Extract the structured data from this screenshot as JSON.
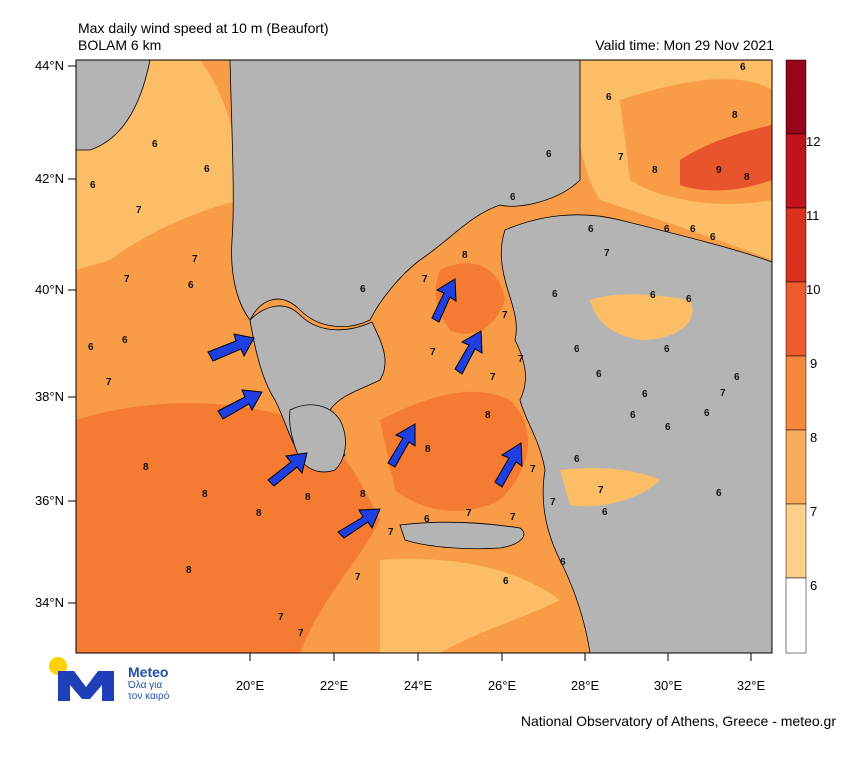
{
  "header": {
    "title": "Max daily wind speed at 10 m (Beaufort)",
    "model": "BOLAM 6 km",
    "valid_time": "Valid time: Mon 29 Nov 2021"
  },
  "map": {
    "lat_labels": [
      "44°N",
      "42°N",
      "40°N",
      "38°N",
      "36°N",
      "34°N"
    ],
    "lon_labels": [
      "20°E",
      "22°E",
      "24°E",
      "26°E",
      "28°E",
      "30°E",
      "32°E"
    ],
    "colors": {
      "land": "#b4b4b4",
      "bf6": "#fbbd66",
      "bf7": "#f99c48",
      "bf8": "#f57a32",
      "bf9": "#e8542b",
      "arrow": "#1f3fe0"
    },
    "contour_labels": {
      "n6": "6",
      "n7": "7",
      "n8": "8",
      "n9": "9"
    },
    "arrows_count": 8
  },
  "colorbar": {
    "labels": [
      "6",
      "7",
      "8",
      "9",
      "10",
      "11",
      "12"
    ],
    "colors": [
      "#ffffff",
      "#fdcf8a",
      "#fbab5c",
      "#f5863c",
      "#ec5c2c",
      "#d9301f",
      "#c1131c",
      "#95061b"
    ]
  },
  "logo": {
    "name": "Meteo",
    "tagline1": "Όλα για",
    "tagline2": "τον καιρό"
  },
  "footer": {
    "credit": "National Observatory of Athens, Greece - meteo.gr"
  }
}
